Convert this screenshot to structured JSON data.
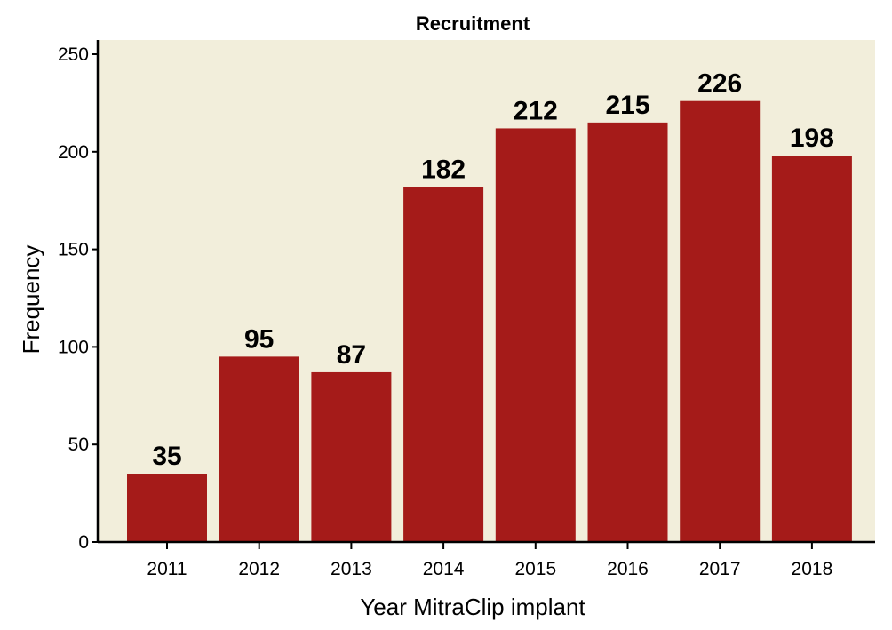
{
  "chart_data": {
    "type": "bar",
    "title": "Recruitment",
    "xlabel": "Year MitraClip implant",
    "ylabel": "Frequency",
    "categories": [
      "2011",
      "2012",
      "2013",
      "2014",
      "2015",
      "2016",
      "2017",
      "2018"
    ],
    "values": [
      35,
      95,
      87,
      182,
      212,
      215,
      226,
      198
    ],
    "data_labels": [
      "35",
      "95",
      "87",
      "182",
      "212",
      "215",
      "226",
      "198"
    ],
    "yticks": [
      0,
      50,
      100,
      150,
      200,
      250
    ],
    "ytick_labels": [
      "0",
      "50",
      "100",
      "150",
      "200",
      "250"
    ],
    "ylim": [
      0,
      250
    ],
    "grid": false,
    "legend": "none",
    "colors": {
      "bar": "#a51b19",
      "plot_background": "#f2eedb",
      "axis": "#000000"
    }
  }
}
